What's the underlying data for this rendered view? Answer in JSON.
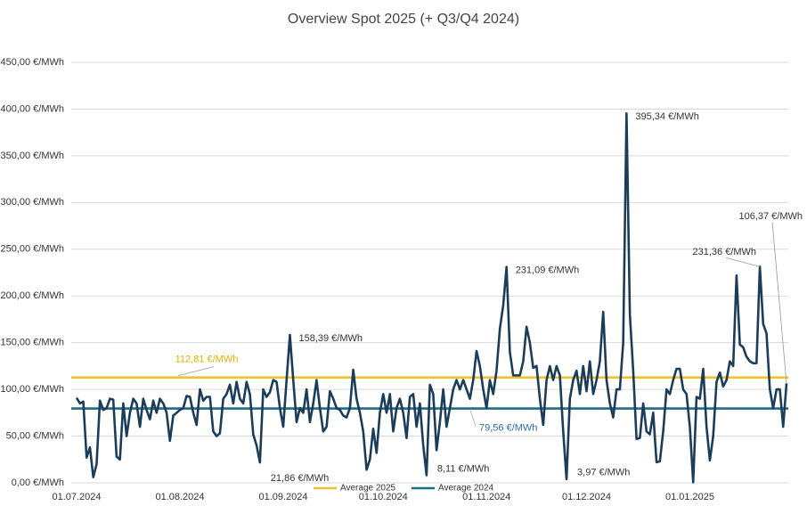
{
  "chart_data": {
    "type": "line",
    "title": "Overview Spot 2025 (+ Q3/Q4 2024)",
    "categories": [
      "01.07.2024",
      null,
      null,
      null,
      null,
      null,
      null,
      null,
      null,
      null,
      null,
      null,
      null,
      null,
      null,
      null,
      null,
      null,
      null,
      null,
      null,
      null,
      null,
      null,
      null,
      null,
      null,
      null,
      null,
      null,
      null,
      "01.08.2024",
      null,
      null,
      null,
      null,
      null,
      null,
      null,
      null,
      null,
      null,
      null,
      null,
      null,
      null,
      null,
      null,
      null,
      null,
      null,
      null,
      null,
      null,
      null,
      null,
      null,
      null,
      null,
      null,
      null,
      null,
      "01.09.2024",
      null,
      null,
      null,
      null,
      null,
      null,
      null,
      null,
      null,
      null,
      null,
      null,
      null,
      null,
      null,
      null,
      null,
      null,
      null,
      null,
      null,
      null,
      null,
      null,
      null,
      null,
      null,
      null,
      null,
      "01.10.2024",
      null,
      null,
      null,
      null,
      null,
      null,
      null,
      null,
      null,
      null,
      null,
      null,
      null,
      null,
      null,
      null,
      null,
      null,
      null,
      null,
      null,
      null,
      null,
      null,
      null,
      null,
      null,
      null,
      null,
      null,
      "01.11.2024",
      null,
      null,
      null,
      null,
      null,
      null,
      null,
      null,
      null,
      null,
      null,
      null,
      null,
      null,
      null,
      null,
      null,
      null,
      null,
      null,
      null,
      null,
      null,
      null,
      null,
      null,
      null,
      null,
      null,
      "01.12.2024",
      null,
      null,
      null,
      null,
      null,
      null,
      null,
      null,
      null,
      null,
      null,
      null,
      null,
      null,
      null,
      null,
      null,
      null,
      null,
      null,
      null,
      null,
      null,
      null,
      null,
      null,
      null,
      null,
      null,
      null,
      "01.01.2025",
      null,
      null,
      null,
      null,
      null,
      null,
      null,
      null,
      null,
      null,
      null,
      null,
      null,
      null,
      null,
      null,
      null,
      null,
      null,
      null,
      null,
      null,
      null,
      null,
      null,
      null,
      null,
      null,
      null
    ],
    "values": [
      91,
      85,
      87,
      27,
      38,
      6,
      20,
      88,
      78,
      80,
      90,
      89,
      28,
      25,
      85,
      50,
      75,
      90,
      85,
      60,
      90,
      78,
      68,
      88,
      75,
      90,
      85,
      75,
      45,
      72,
      75,
      78,
      80,
      93,
      92,
      75,
      62,
      100,
      88,
      92,
      92,
      55,
      50,
      53,
      90,
      95,
      105,
      85,
      108,
      90,
      85,
      108,
      95,
      52,
      40,
      21.86,
      100,
      92,
      97,
      110,
      108,
      80,
      60,
      110,
      158.39,
      110,
      65,
      80,
      75,
      100,
      65,
      85,
      110,
      80,
      55,
      60,
      98,
      90,
      80,
      78,
      72,
      70,
      80,
      121,
      90,
      75,
      55,
      14,
      25,
      58,
      32,
      75,
      95,
      75,
      95,
      55,
      80,
      90,
      75,
      48,
      92,
      95,
      60,
      85,
      40,
      8.11,
      105,
      95,
      35,
      65,
      100,
      60,
      80,
      100,
      110,
      100,
      110,
      100,
      90,
      110,
      141,
      125,
      100,
      80,
      110,
      95,
      120,
      165,
      190,
      231.09,
      140,
      115,
      115,
      115,
      130,
      167,
      150,
      123,
      125,
      90,
      62,
      110,
      125,
      110,
      125,
      115,
      55,
      3.97,
      90,
      110,
      120,
      95,
      125,
      98,
      130,
      95,
      110,
      130,
      183,
      110,
      85,
      70,
      100,
      100,
      150,
      395.34,
      180,
      120,
      47,
      48,
      85,
      55,
      52,
      75,
      22,
      23,
      55,
      100,
      95,
      110,
      122,
      122,
      100,
      95,
      60,
      0.5,
      92,
      90,
      122,
      60,
      24,
      50,
      108,
      118,
      103,
      110,
      130,
      125,
      222,
      148,
      145,
      135,
      130,
      128,
      128,
      231.36,
      170,
      160,
      100,
      80,
      100,
      100,
      60,
      106.37
    ],
    "value_labels": [
      null,
      null,
      null,
      null,
      null,
      null,
      null,
      null,
      null,
      null,
      null,
      null,
      null,
      null,
      null,
      null,
      null,
      null,
      null,
      null,
      null,
      null,
      null,
      null,
      null,
      null,
      null,
      null,
      null,
      null,
      null,
      null,
      null,
      null,
      null,
      null,
      null,
      null,
      null,
      null,
      null,
      null,
      null,
      null,
      null,
      null,
      null,
      null,
      null,
      null,
      null,
      null,
      null,
      null,
      null,
      "21,86 €/MWh",
      null,
      null,
      null,
      null,
      null,
      null,
      null,
      null,
      "158,39 €/MWh",
      null,
      null,
      null,
      null,
      null,
      null,
      null,
      null,
      null,
      null,
      null,
      null,
      null,
      null,
      null,
      null,
      null,
      null,
      null,
      null,
      null,
      null,
      null,
      null,
      null,
      null,
      null,
      null,
      null,
      null,
      null,
      null,
      null,
      null,
      null,
      null,
      null,
      null,
      null,
      null,
      "8,11 €/MWh",
      null,
      null,
      null,
      null,
      null,
      null,
      null,
      null,
      null,
      null,
      null,
      null,
      null,
      null,
      null,
      null,
      null,
      null,
      null,
      null,
      null,
      null,
      null,
      "231,09 €/MWh",
      null,
      null,
      null,
      null,
      null,
      null,
      null,
      null,
      null,
      null,
      null,
      null,
      null,
      null,
      null,
      null,
      null,
      "3,97 €/MWh",
      null,
      null,
      null,
      null,
      null,
      null,
      null,
      null,
      null,
      null,
      null,
      null,
      null,
      null,
      null,
      null,
      null,
      "395,34 €/MWh",
      null,
      null,
      null,
      null,
      null,
      null,
      null,
      null,
      null,
      null,
      null,
      null,
      null,
      null,
      null,
      null,
      null,
      null,
      null,
      null,
      null,
      null,
      null,
      null,
      null,
      null,
      null,
      null,
      null,
      null,
      null,
      null,
      null,
      null,
      null,
      null,
      null,
      null,
      null,
      "231,36 €/MWh",
      null,
      null,
      null,
      null,
      null,
      null,
      null,
      "106,37 €/MWh"
    ],
    "color": "#1c3d5a",
    "reference_lines": [
      {
        "name": "Average 2025",
        "color": "#f2c12e",
        "label_color": "#e0b000",
        "value": 112.81,
        "label": "112,81 €/MWh"
      },
      {
        "name": "Average 2024",
        "color": "#1f6e7e",
        "label_color": "#2e6ea6",
        "value": 79.56,
        "label": "79,56 €/MWh"
      }
    ],
    "ylim": [
      0,
      450
    ],
    "yticks": [
      {
        "value": 0,
        "label": "0,00 €/MWh"
      },
      {
        "value": 50,
        "label": "50,00 €/MWh"
      },
      {
        "value": 100,
        "label": "100,00 €/MWh"
      },
      {
        "value": 150,
        "label": "150,00 €/MWh"
      },
      {
        "value": 200,
        "label": "200,00 €/MWh"
      },
      {
        "value": 250,
        "label": "250,00 €/MWh"
      },
      {
        "value": 300,
        "label": "300,00 €/MWh"
      },
      {
        "value": 350,
        "label": "350,00 €/MWh"
      },
      {
        "value": 400,
        "label": "400,00 €/MWh"
      },
      {
        "value": 450,
        "label": "450,00 €/MWh"
      }
    ],
    "grid": true
  }
}
